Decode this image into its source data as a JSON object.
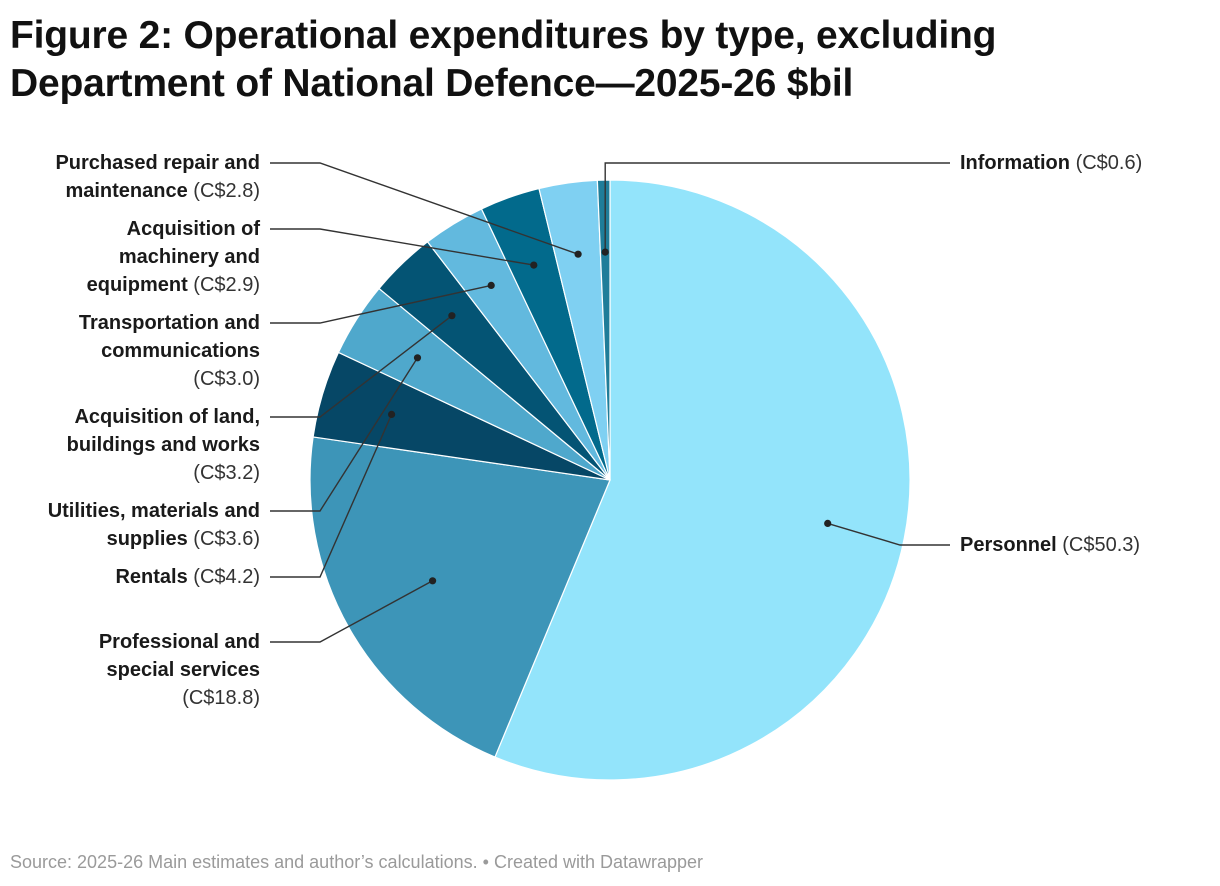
{
  "title": "Figure 2: Operational expenditures by type, excluding Department of National Defence—2025-26 $bil",
  "footer": {
    "source": "Source: 2025-26 Main estimates and author’s calculations.",
    "separator": "•",
    "credit": "Created with Datawrapper"
  },
  "chart_data": {
    "type": "pie",
    "title": "Figure 2: Operational expenditures by type, excluding Department of National Defence—2025-26 $bil",
    "unit": "C$ billions",
    "start": "top",
    "direction": "clockwise",
    "slices": [
      {
        "key": "personnel",
        "name": "Personnel",
        "value": 50.3,
        "value_label": "(C$50.3)",
        "color": "#93e4fb",
        "lines": [
          "{name} {val}"
        ]
      },
      {
        "key": "professional",
        "name": "Professional and special services",
        "value": 18.8,
        "value_label": "(C$18.8)",
        "color": "#3d95b8",
        "lines": [
          "Professional and",
          "special services",
          "{val}"
        ]
      },
      {
        "key": "rentals",
        "name": "Rentals",
        "value": 4.2,
        "value_label": "(C$4.2)",
        "color": "#064766",
        "lines": [
          "{name} {val}"
        ]
      },
      {
        "key": "utilities",
        "name": "Utilities, materials and supplies",
        "value": 3.6,
        "value_label": "(C$3.6)",
        "color": "#4fa8cc",
        "lines": [
          "Utilities, materials and",
          "supplies {val}"
        ]
      },
      {
        "key": "land",
        "name": "Acquisition of land, buildings and works",
        "value": 3.2,
        "value_label": "(C$3.2)",
        "color": "#045474",
        "lines": [
          "Acquisition of land,",
          "buildings and works",
          "{val}"
        ]
      },
      {
        "key": "transport",
        "name": "Transportation and communications",
        "value": 3.0,
        "value_label": "(C$3.0)",
        "color": "#62b9de",
        "lines": [
          "Transportation and",
          "communications",
          "{val}"
        ]
      },
      {
        "key": "machinery",
        "name": "Acquisition of machinery and equipment",
        "value": 2.9,
        "value_label": "(C$2.9)",
        "color": "#026a8c",
        "lines": [
          "Acquisition of",
          "machinery and",
          "equipment {val}"
        ]
      },
      {
        "key": "repair",
        "name": "Purchased repair and maintenance",
        "value": 2.8,
        "value_label": "(C$2.8)",
        "color": "#7fd0f2",
        "lines": [
          "Purchased repair and",
          "maintenance {val}"
        ]
      },
      {
        "key": "information",
        "name": "Information",
        "value": 0.6,
        "value_label": "(C$0.6)",
        "color": "#1f7d99",
        "lines": [
          "{name} {val}"
        ]
      }
    ]
  }
}
